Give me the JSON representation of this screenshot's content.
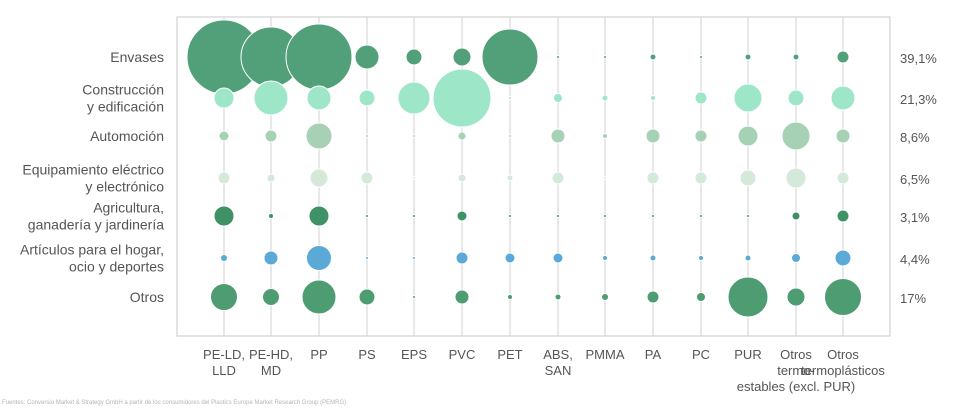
{
  "chart_data": {
    "type": "bubble",
    "title": "",
    "xlabel": "",
    "ylabel": "",
    "grid": true,
    "categories_y": [
      "Envases",
      "Construcción\ny edificación",
      "Automoción",
      "Equipamiento eléctrico\ny electrónico",
      "Agricultura,\nganadería y jardinería",
      "Artículos para el hogar,\nocio y deportes",
      "Otros"
    ],
    "categories_x": [
      "PE-LD,\nLLD",
      "PE-HD,\nMD",
      "PP",
      "PS",
      "EPS",
      "PVC",
      "PET",
      "ABS,\nSAN",
      "PMMA",
      "PA",
      "PC",
      "PUR",
      "Otros\ntermo-\nestables (excl. PUR)",
      "Otros\ntermoplásticos"
    ],
    "row_shares": [
      "39,1%",
      "21,3%",
      "8,6%",
      "6,5%",
      "3,1%",
      "4,4%",
      "17%"
    ],
    "row_colors": [
      "#52a07a",
      "#9ee6c8",
      "#a6d1b5",
      "#d4e9da",
      "#3f9266",
      "#5aa9d6",
      "#4e9c72"
    ],
    "values": [
      [
        37,
        30,
        33,
        12,
        8,
        9,
        28,
        1.5,
        1.5,
        3,
        1.5,
        3,
        3,
        6
      ],
      [
        10,
        17,
        12,
        8,
        16,
        29,
        1.5,
        4.5,
        3,
        2.5,
        6,
        14,
        8,
        12
      ],
      [
        5,
        6,
        13,
        1.5,
        1.5,
        4,
        1.5,
        7,
        2.5,
        7,
        6,
        10,
        14,
        7
      ],
      [
        6,
        4,
        9,
        6,
        1.5,
        4,
        3,
        6,
        1.5,
        6,
        6,
        8,
        10,
        6
      ],
      [
        10,
        2.5,
        10,
        1.5,
        1.5,
        5,
        1.5,
        1.5,
        1.5,
        1.5,
        1.5,
        1.5,
        4,
        6
      ],
      [
        3.5,
        7,
        12.5,
        1.5,
        1.5,
        6,
        5,
        5,
        2.5,
        3,
        2.5,
        3,
        4.5,
        8
      ],
      [
        13.5,
        8.5,
        17,
        8,
        1.5,
        7,
        2.5,
        3,
        3.5,
        6,
        4.5,
        20,
        9,
        18.5
      ]
    ],
    "value_note": "bubble radius (relative scale)",
    "source": "Fuentes: Conversio Market & Strategy GmbH a partir de los consumidores del Plastics Europe Market Research Group (PEMRG)"
  }
}
